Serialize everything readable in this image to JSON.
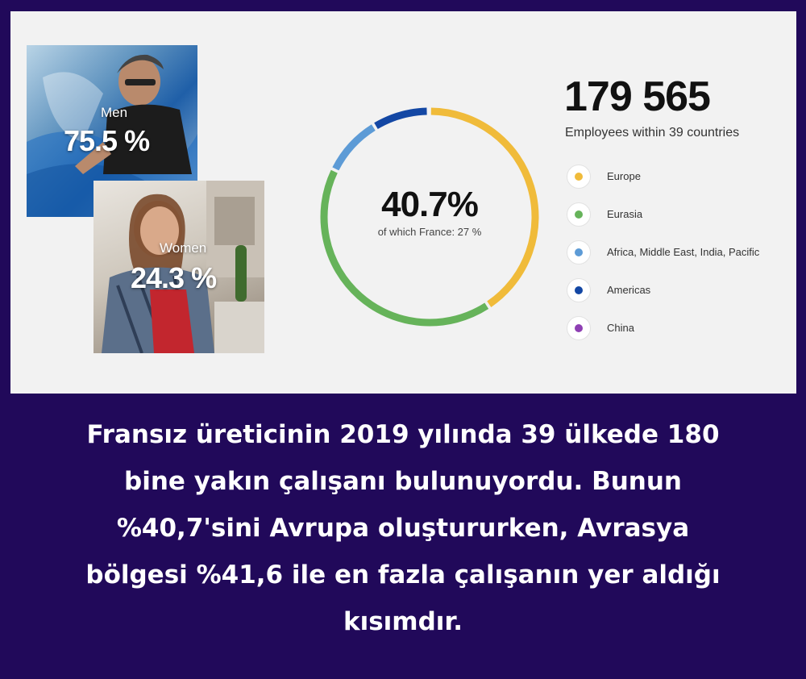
{
  "infographic": {
    "gender": {
      "men_label": "Men",
      "men_value": "75.5 %",
      "women_label": "Women",
      "women_value": "24.3 %"
    },
    "total": {
      "value": "179 565",
      "subtitle": "Employees within 39 countries"
    },
    "donut_center": {
      "value": "40.7%",
      "subtitle": "of which France: 27 %"
    }
  },
  "chart_data": [
    {
      "type": "pie",
      "title": "",
      "center_label": "40.7%",
      "center_sublabel": "of which France: 27 %",
      "legend_position": "right",
      "series": [
        {
          "name": "Europe",
          "value": 40.7,
          "color": "#f0bb3a"
        },
        {
          "name": "Eurasia",
          "value": 41.6,
          "color": "#66b35a"
        },
        {
          "name": "Africa, Middle East, India, Pacific",
          "value": 9.0,
          "color": "#5d9bd6"
        },
        {
          "name": "Americas",
          "value": 8.5,
          "color": "#1347a4"
        },
        {
          "name": "China",
          "value": 0.2,
          "color": "#8e3fb3"
        }
      ]
    },
    {
      "type": "table",
      "title": "",
      "categories": [
        "Men",
        "Women"
      ],
      "values": [
        75.5,
        24.3
      ]
    }
  ],
  "caption": {
    "lines": [
      "Fransız üreticinin 2019 yılında 39 ülkede 180",
      "bine yakın çalışanı bulunuyordu. Bunun",
      "%40,7'sini Avrupa oluştururken, Avrasya",
      "bölgesi %41,6 ile en fazla çalışanın yer aldığı",
      "kısımdır."
    ]
  }
}
